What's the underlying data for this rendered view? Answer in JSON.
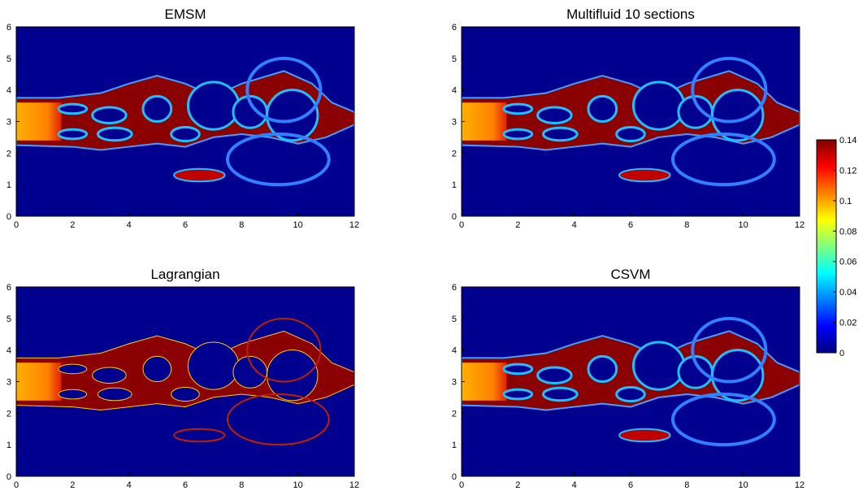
{
  "chart_data": [
    {
      "type": "heatmap",
      "title": "EMSM",
      "xlim": [
        0,
        12
      ],
      "ylim": [
        0,
        6
      ],
      "xticks": [
        0,
        2,
        4,
        6,
        8,
        10,
        12
      ],
      "yticks": [
        0,
        1,
        2,
        3,
        4,
        5,
        6
      ]
    },
    {
      "type": "heatmap",
      "title": "Multifluid 10 sections",
      "xlim": [
        0,
        12
      ],
      "ylim": [
        0,
        6
      ],
      "xticks": [
        0,
        2,
        4,
        6,
        8,
        10,
        12
      ],
      "yticks": [
        0,
        1,
        2,
        3,
        4,
        5,
        6
      ]
    },
    {
      "type": "heatmap",
      "title": "Lagrangian",
      "xlim": [
        0,
        12
      ],
      "ylim": [
        0,
        6
      ],
      "xticks": [
        0,
        2,
        4,
        6,
        8,
        10,
        12
      ],
      "yticks": [
        0,
        1,
        2,
        3,
        4,
        5,
        6
      ]
    },
    {
      "type": "heatmap",
      "title": "CSVM",
      "xlim": [
        0,
        12
      ],
      "ylim": [
        0,
        6
      ],
      "xticks": [
        0,
        2,
        4,
        6,
        8,
        10,
        12
      ],
      "yticks": [
        0,
        1,
        2,
        3,
        4,
        5,
        6
      ]
    },
    {
      "type": "colorbar",
      "colormap": "jet",
      "clim": [
        0,
        0.14
      ],
      "cticks": [
        0,
        0.02,
        0.04,
        0.06,
        0.08,
        0.1,
        0.12,
        0.14
      ]
    }
  ]
}
